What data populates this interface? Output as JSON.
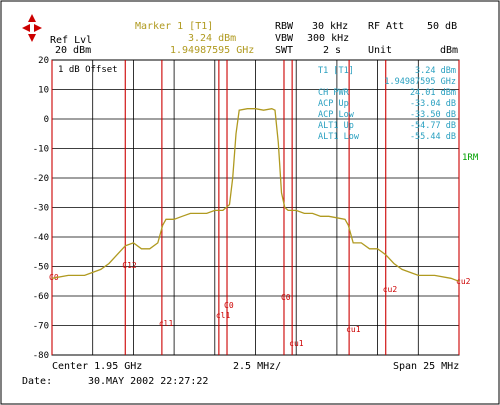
{
  "header": {
    "ref_lvl_label": "Ref Lvl",
    "ref_lvl_value": "20 dBm",
    "marker_label": "Marker 1 [T1]",
    "marker_level": "3.24 dBm",
    "marker_freq": "1.94987595 GHz",
    "rbw_label": "RBW",
    "rbw_value": "30 kHz",
    "vbw_label": "VBW",
    "vbw_value": "300 kHz",
    "swt_label": "SWT",
    "swt_value": "2 s",
    "rf_att_label": "RF Att",
    "rf_att_value": "50 dB",
    "unit_label": "Unit",
    "unit_value": "dBm"
  },
  "plot_labels": {
    "offset": "1 dB Offset",
    "side_tag": "1RM"
  },
  "marker_table": [
    {
      "name": "T1 [T1]",
      "value": "3.24 dBm"
    },
    {
      "name": "",
      "value": "1.94987595 GHz"
    },
    {
      "name": "CH PWR",
      "value": "24.01 dBm"
    },
    {
      "name": "ACP Up",
      "value": "-33.04 dB"
    },
    {
      "name": "ACP Low",
      "value": "-33.50 dB"
    },
    {
      "name": "ALT1 Up",
      "value": "-54.77 dB"
    },
    {
      "name": "ALT1 Low",
      "value": "-55.44 dB"
    }
  ],
  "footer": {
    "center": "Center 1.95 GHz",
    "div": "2.5 MHz/",
    "span": "Span 25 MHz",
    "date_label": "Date:",
    "date_value": "30.MAY 2002  22:27:22"
  },
  "colors": {
    "trace": "#b09a20",
    "marker_lines": "#cc0000",
    "grid": "#000000",
    "header_text": "#b09a20",
    "table_text": "#2aa0c0",
    "logo": "#cc0000",
    "side_tag": "#00a000"
  },
  "chart_data": {
    "type": "line",
    "title": "",
    "xlabel": "",
    "ylabel": "",
    "ylim": [
      -80,
      20
    ],
    "yticks": [
      20,
      10,
      0,
      -10,
      -20,
      -30,
      -40,
      -50,
      -60,
      -70,
      -80
    ],
    "xlim": [
      1.9375,
      1.9625
    ],
    "x_unit": "GHz",
    "grid": true,
    "series": [
      {
        "x": [
          1.9375,
          1.9385,
          1.9395,
          1.9405,
          1.941,
          1.9415,
          1.942,
          1.9425,
          1.943,
          1.9435,
          1.944,
          1.9443,
          1.9445,
          1.945,
          1.9455,
          1.946,
          1.9465,
          1.947,
          1.9475,
          1.948,
          1.9484,
          1.9486,
          1.9488,
          1.949,
          1.9495,
          1.95,
          1.9505,
          1.951,
          1.9512,
          1.9514,
          1.9516,
          1.9518,
          1.952,
          1.9525,
          1.953,
          1.9535,
          1.954,
          1.9545,
          1.955,
          1.9555,
          1.9557,
          1.956,
          1.9565,
          1.957,
          1.9575,
          1.958,
          1.9585,
          1.959,
          1.96,
          1.961,
          1.962,
          1.9625
        ],
        "y": [
          -54,
          -53,
          -53,
          -51,
          -49,
          -46,
          -43,
          -42,
          -44,
          -44,
          -42,
          -36,
          -34,
          -34,
          -33,
          -32,
          -32,
          -32,
          -31,
          -31,
          -29,
          -20,
          -5,
          3,
          3.5,
          3.5,
          3,
          3.5,
          3,
          -8,
          -25,
          -30,
          -31,
          -31,
          -32,
          -32,
          -33,
          -33,
          -33.5,
          -34,
          -36,
          -42,
          -42,
          -44,
          -44,
          -46,
          -49,
          -51,
          -53,
          -53,
          -54,
          -55
        ]
      }
    ],
    "marker_lines": [
      {
        "label": "C0",
        "x": 1.9375
      },
      {
        "label": "C12",
        "x": 1.942
      },
      {
        "label": "cl1",
        "x": 1.94425
      },
      {
        "label": "cl1",
        "x": 1.94775
      },
      {
        "label": "C0",
        "x": 1.94825
      },
      {
        "label": "C0",
        "x": 1.95175
      },
      {
        "label": "cu1",
        "x": 1.95225
      },
      {
        "label": "cu1",
        "x": 1.95575
      },
      {
        "label": "cu2",
        "x": 1.958
      },
      {
        "label": "cu2",
        "x": 1.9625
      }
    ]
  }
}
